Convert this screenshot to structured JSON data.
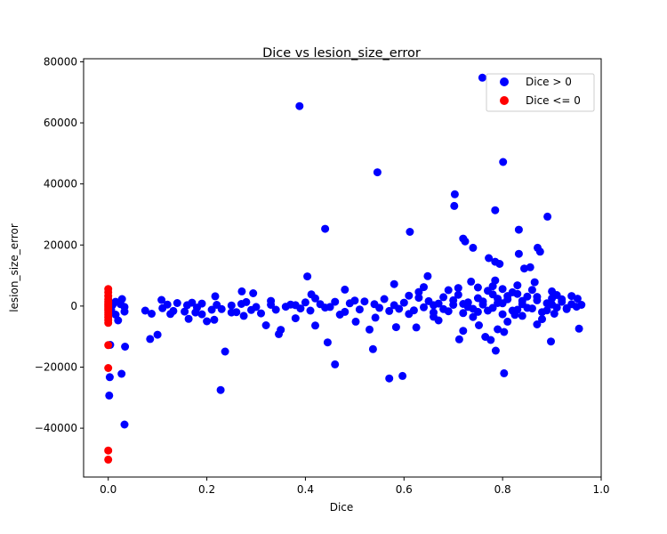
{
  "chart_data": {
    "type": "scatter",
    "title": "Dice vs lesion_size_error",
    "xlabel": "Dice",
    "ylabel": "lesion_size_error",
    "xlim": [
      -0.05,
      1.0
    ],
    "ylim": [
      -56000,
      81000
    ],
    "xticks": [
      "0.0",
      "0.2",
      "0.4",
      "0.6",
      "0.8",
      "1.0"
    ],
    "yticks": [
      "−40000",
      "−20000",
      "0",
      "20000",
      "40000",
      "60000",
      "80000"
    ],
    "grid": false,
    "legend_position": "top-right",
    "series": [
      {
        "name": "Dice > 0",
        "color": "#0000ff",
        "points": [
          [
            0.388,
            65500
          ],
          [
            0.759,
            74800
          ],
          [
            0.546,
            43800
          ],
          [
            0.801,
            47200
          ],
          [
            0.703,
            36600
          ],
          [
            0.702,
            32800
          ],
          [
            0.785,
            31400
          ],
          [
            0.891,
            29300
          ],
          [
            0.44,
            25300
          ],
          [
            0.833,
            25000
          ],
          [
            0.612,
            24300
          ],
          [
            0.72,
            22100
          ],
          [
            0.724,
            21200
          ],
          [
            0.74,
            19100
          ],
          [
            0.871,
            19100
          ],
          [
            0.876,
            17800
          ],
          [
            0.833,
            17100
          ],
          [
            0.772,
            15700
          ],
          [
            0.785,
            14500
          ],
          [
            0.794,
            13800
          ],
          [
            0.844,
            12300
          ],
          [
            0.856,
            12700
          ],
          [
            0.404,
            9700
          ],
          [
            0.648,
            9800
          ],
          [
            0.736,
            8000
          ],
          [
            0.785,
            8400
          ],
          [
            0.865,
            7800
          ],
          [
            0.028,
            2300
          ],
          [
            0.108,
            2000
          ],
          [
            0.217,
            3200
          ],
          [
            0.271,
            4800
          ],
          [
            0.294,
            4200
          ],
          [
            0.412,
            3800
          ],
          [
            0.48,
            5400
          ],
          [
            0.5,
            1800
          ],
          [
            0.58,
            7200
          ],
          [
            0.64,
            6200
          ],
          [
            0.69,
            5200
          ],
          [
            0.75,
            6100
          ],
          [
            0.83,
            6800
          ],
          [
            0.9,
            4800
          ],
          [
            0.94,
            3300
          ],
          [
            0.952,
            2400
          ],
          [
            0.96,
            400
          ],
          [
            0.006,
            -1200
          ],
          [
            0.015,
            -2800
          ],
          [
            0.02,
            -4700
          ],
          [
            0.025,
            600
          ],
          [
            0.033,
            -1800
          ],
          [
            0.034,
            -13300
          ],
          [
            0.003,
            -23300
          ],
          [
            0.002,
            -29300
          ],
          [
            0.004,
            -12700
          ],
          [
            0.027,
            -22200
          ],
          [
            0.033,
            -38800
          ],
          [
            0.075,
            -1500
          ],
          [
            0.088,
            -2500
          ],
          [
            0.1,
            -9400
          ],
          [
            0.085,
            -10800
          ],
          [
            0.126,
            -2600
          ],
          [
            0.132,
            -1600
          ],
          [
            0.155,
            -1800
          ],
          [
            0.163,
            -4200
          ],
          [
            0.177,
            -2100
          ],
          [
            0.2,
            -5000
          ],
          [
            0.215,
            -4500
          ],
          [
            0.228,
            -27500
          ],
          [
            0.237,
            -14900
          ],
          [
            0.26,
            -2000
          ],
          [
            0.275,
            -3200
          ],
          [
            0.31,
            -2400
          ],
          [
            0.32,
            -6300
          ],
          [
            0.346,
            -9200
          ],
          [
            0.35,
            -7800
          ],
          [
            0.38,
            -4000
          ],
          [
            0.42,
            -6400
          ],
          [
            0.445,
            -11900
          ],
          [
            0.46,
            -19100
          ],
          [
            0.47,
            -2800
          ],
          [
            0.502,
            -5100
          ],
          [
            0.53,
            -7700
          ],
          [
            0.537,
            -14100
          ],
          [
            0.542,
            -3800
          ],
          [
            0.57,
            -23700
          ],
          [
            0.597,
            -22900
          ],
          [
            0.584,
            -6900
          ],
          [
            0.625,
            -7000
          ],
          [
            0.66,
            -3500
          ],
          [
            0.712,
            -10900
          ],
          [
            0.72,
            -8100
          ],
          [
            0.752,
            -6300
          ],
          [
            0.765,
            -10100
          ],
          [
            0.776,
            -11100
          ],
          [
            0.786,
            -14600
          ],
          [
            0.79,
            -7600
          ],
          [
            0.803,
            -8500
          ],
          [
            0.803,
            -22000
          ],
          [
            0.825,
            -2900
          ],
          [
            0.84,
            -3200
          ],
          [
            0.87,
            -6000
          ],
          [
            0.898,
            -11600
          ],
          [
            0.905,
            -2500
          ],
          [
            0.955,
            -7400
          ],
          [
            0.14,
            1000
          ],
          [
            0.16,
            300
          ],
          [
            0.18,
            -500
          ],
          [
            0.19,
            800
          ],
          [
            0.23,
            -1000
          ],
          [
            0.25,
            200
          ],
          [
            0.28,
            1300
          ],
          [
            0.3,
            -300
          ],
          [
            0.33,
            400
          ],
          [
            0.36,
            -200
          ],
          [
            0.37,
            500
          ],
          [
            0.39,
            -800
          ],
          [
            0.4,
            1200
          ],
          [
            0.43,
            600
          ],
          [
            0.45,
            -300
          ],
          [
            0.49,
            900
          ],
          [
            0.51,
            -1100
          ],
          [
            0.52,
            1500
          ],
          [
            0.55,
            -600
          ],
          [
            0.56,
            2300
          ],
          [
            0.59,
            -900
          ],
          [
            0.6,
            1100
          ],
          [
            0.61,
            3400
          ],
          [
            0.62,
            -1400
          ],
          [
            0.63,
            2700
          ],
          [
            0.64,
            -400
          ],
          [
            0.65,
            1600
          ],
          [
            0.66,
            -2100
          ],
          [
            0.67,
            800
          ],
          [
            0.68,
            2900
          ],
          [
            0.69,
            -1700
          ],
          [
            0.7,
            400
          ],
          [
            0.71,
            3700
          ],
          [
            0.72,
            -2300
          ],
          [
            0.73,
            1200
          ],
          [
            0.74,
            -900
          ],
          [
            0.75,
            2600
          ],
          [
            0.76,
            500
          ],
          [
            0.77,
            -1500
          ],
          [
            0.78,
            3800
          ],
          [
            0.79,
            1000
          ],
          [
            0.8,
            -2700
          ],
          [
            0.81,
            2200
          ],
          [
            0.82,
            4500
          ],
          [
            0.83,
            -1200
          ],
          [
            0.84,
            600
          ],
          [
            0.85,
            3100
          ],
          [
            0.86,
            -800
          ],
          [
            0.87,
            1900
          ],
          [
            0.88,
            -2000
          ],
          [
            0.89,
            900
          ],
          [
            0.9,
            2500
          ],
          [
            0.91,
            -500
          ],
          [
            0.92,
            1400
          ],
          [
            0.93,
            -1000
          ],
          [
            0.94,
            600
          ],
          [
            0.95,
            -200
          ],
          [
            0.61,
            -2600
          ],
          [
            0.63,
            4600
          ],
          [
            0.67,
            -4700
          ],
          [
            0.71,
            5900
          ],
          [
            0.74,
            -3600
          ],
          [
            0.77,
            5000
          ],
          [
            0.8,
            5600
          ],
          [
            0.81,
            -5100
          ],
          [
            0.83,
            4000
          ],
          [
            0.86,
            5300
          ],
          [
            0.88,
            -4300
          ],
          [
            0.91,
            3600
          ],
          [
            0.66,
            300
          ],
          [
            0.68,
            -1000
          ],
          [
            0.7,
            1900
          ],
          [
            0.72,
            700
          ],
          [
            0.73,
            -300
          ],
          [
            0.75,
            -1900
          ],
          [
            0.76,
            1500
          ],
          [
            0.78,
            -600
          ],
          [
            0.79,
            2400
          ],
          [
            0.8,
            900
          ],
          [
            0.82,
            -1500
          ],
          [
            0.84,
            1700
          ],
          [
            0.85,
            -600
          ],
          [
            0.87,
            3000
          ],
          [
            0.89,
            -1400
          ],
          [
            0.9,
            500
          ],
          [
            0.92,
            2200
          ],
          [
            0.93,
            -700
          ],
          [
            0.78,
            6500
          ],
          [
            0.81,
            3300
          ],
          [
            0.58,
            300
          ],
          [
            0.57,
            -1600
          ],
          [
            0.54,
            600
          ],
          [
            0.48,
            -1900
          ],
          [
            0.46,
            1400
          ],
          [
            0.44,
            -500
          ],
          [
            0.42,
            2500
          ],
          [
            0.41,
            -1500
          ],
          [
            0.38,
            300
          ],
          [
            0.34,
            -1200
          ],
          [
            0.33,
            1700
          ],
          [
            0.29,
            -1300
          ],
          [
            0.27,
            700
          ],
          [
            0.25,
            -2100
          ],
          [
            0.22,
            400
          ],
          [
            0.21,
            -1200
          ],
          [
            0.19,
            -2700
          ],
          [
            0.17,
            1100
          ],
          [
            0.12,
            500
          ],
          [
            0.11,
            -700
          ],
          [
            0.033,
            -300
          ],
          [
            0.015,
            1400
          ],
          [
            0.009,
            400
          ],
          [
            0.005,
            -600
          ]
        ]
      },
      {
        "name": "Dice <= 0",
        "color": "#ff0000",
        "points": [
          [
            0.0,
            5600
          ],
          [
            0.0,
            4500
          ],
          [
            0.0,
            3300
          ],
          [
            0.0,
            2200
          ],
          [
            0.0,
            1400
          ],
          [
            0.0,
            700
          ],
          [
            0.0,
            200
          ],
          [
            0.0,
            -300
          ],
          [
            0.0,
            -900
          ],
          [
            0.0,
            -1500
          ],
          [
            0.0,
            -2200
          ],
          [
            0.0,
            -2900
          ],
          [
            0.0,
            -3700
          ],
          [
            0.0,
            -4600
          ],
          [
            0.0,
            -5500
          ],
          [
            0.0,
            -12800
          ],
          [
            0.0,
            -20300
          ],
          [
            0.0,
            -47300
          ],
          [
            0.0,
            -50300
          ]
        ]
      }
    ]
  }
}
